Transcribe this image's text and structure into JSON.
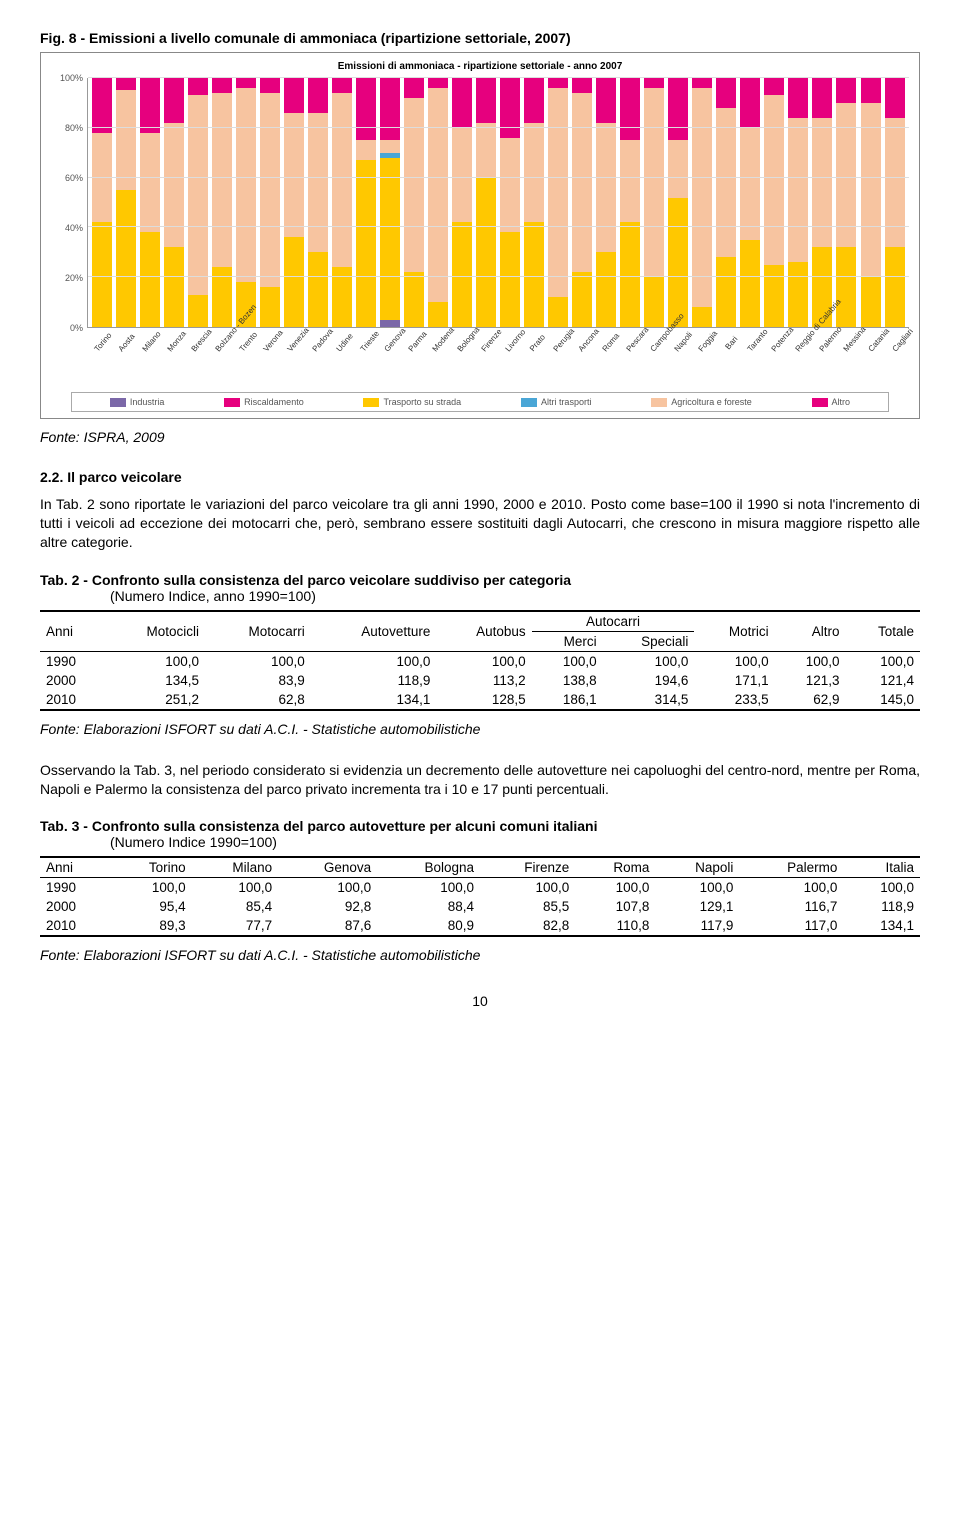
{
  "fig": {
    "title": "Fig. 8 - Emissioni a livello comunale di ammoniaca (ripartizione settoriale, 2007)",
    "chart_title": "Emissioni di ammoniaca - ripartizione settoriale - anno 2007",
    "source": "Fonte: ISPRA, 2009",
    "y_ticks": [
      "0%",
      "20%",
      "40%",
      "60%",
      "80%",
      "100%"
    ],
    "colors": {
      "industria": "#7b68a8",
      "riscaldamento": "#e6007e",
      "trasporto": "#ffc800",
      "altri_trasporti": "#4aa6d6",
      "agricoltura": "#f7c4a0",
      "altro": "#e6007e",
      "grid": "#dddddd",
      "background": "#ffffff"
    },
    "legend": [
      "Industria",
      "Riscaldamento",
      "Trasporto su strada",
      "Altri trasporti",
      "Agricoltura e foreste",
      "Altro"
    ],
    "legend_colors": [
      "#7b68a8",
      "#e6007e",
      "#ffc800",
      "#4aa6d6",
      "#f7c4a0",
      "#e6007e"
    ],
    "categories": [
      "Torino",
      "Aosta",
      "Milano",
      "Monza",
      "Brescia",
      "Bolzano - Bozen",
      "Trento",
      "Verona",
      "Venezia",
      "Padova",
      "Udine",
      "Trieste",
      "Genova",
      "Parma",
      "Modena",
      "Bologna",
      "Firenze",
      "Livorno",
      "Prato",
      "Perugia",
      "Ancona",
      "Roma",
      "Pescara",
      "Campobasso",
      "Napoli",
      "Foggia",
      "Bari",
      "Taranto",
      "Potenza",
      "Reggio di Calabria",
      "Palermo",
      "Messina",
      "Catania",
      "Cagliari"
    ],
    "series": [
      {
        "ind": 0,
        "risc": 0,
        "trasp": 42,
        "altri": 0,
        "agri": 36,
        "altro": 22
      },
      {
        "ind": 0,
        "risc": 0,
        "trasp": 55,
        "altri": 0,
        "agri": 40,
        "altro": 5
      },
      {
        "ind": 0,
        "risc": 0,
        "trasp": 38,
        "altri": 0,
        "agri": 40,
        "altro": 22
      },
      {
        "ind": 0,
        "risc": 0,
        "trasp": 32,
        "altri": 0,
        "agri": 50,
        "altro": 18
      },
      {
        "ind": 0,
        "risc": 0,
        "trasp": 13,
        "altri": 0,
        "agri": 80,
        "altro": 7
      },
      {
        "ind": 0,
        "risc": 0,
        "trasp": 24,
        "altri": 0,
        "agri": 70,
        "altro": 6
      },
      {
        "ind": 0,
        "risc": 0,
        "trasp": 18,
        "altri": 0,
        "agri": 78,
        "altro": 4
      },
      {
        "ind": 0,
        "risc": 0,
        "trasp": 16,
        "altri": 0,
        "agri": 78,
        "altro": 6
      },
      {
        "ind": 0,
        "risc": 0,
        "trasp": 36,
        "altri": 0,
        "agri": 50,
        "altro": 14
      },
      {
        "ind": 0,
        "risc": 0,
        "trasp": 30,
        "altri": 0,
        "agri": 56,
        "altro": 14
      },
      {
        "ind": 0,
        "risc": 0,
        "trasp": 24,
        "altri": 0,
        "agri": 70,
        "altro": 6
      },
      {
        "ind": 0,
        "risc": 0,
        "trasp": 67,
        "altri": 0,
        "agri": 8,
        "altro": 25
      },
      {
        "ind": 3,
        "risc": 0,
        "trasp": 65,
        "altri": 2,
        "agri": 5,
        "altro": 25
      },
      {
        "ind": 0,
        "risc": 0,
        "trasp": 22,
        "altri": 0,
        "agri": 70,
        "altro": 8
      },
      {
        "ind": 0,
        "risc": 0,
        "trasp": 10,
        "altri": 0,
        "agri": 86,
        "altro": 4
      },
      {
        "ind": 0,
        "risc": 0,
        "trasp": 42,
        "altri": 0,
        "agri": 38,
        "altro": 20
      },
      {
        "ind": 0,
        "risc": 0,
        "trasp": 60,
        "altri": 0,
        "agri": 22,
        "altro": 18
      },
      {
        "ind": 0,
        "risc": 0,
        "trasp": 38,
        "altri": 0,
        "agri": 38,
        "altro": 24
      },
      {
        "ind": 0,
        "risc": 0,
        "trasp": 42,
        "altri": 0,
        "agri": 40,
        "altro": 18
      },
      {
        "ind": 0,
        "risc": 0,
        "trasp": 12,
        "altri": 0,
        "agri": 84,
        "altro": 4
      },
      {
        "ind": 0,
        "risc": 0,
        "trasp": 22,
        "altri": 0,
        "agri": 72,
        "altro": 6
      },
      {
        "ind": 0,
        "risc": 0,
        "trasp": 30,
        "altri": 0,
        "agri": 52,
        "altro": 18
      },
      {
        "ind": 0,
        "risc": 0,
        "trasp": 42,
        "altri": 0,
        "agri": 33,
        "altro": 25
      },
      {
        "ind": 0,
        "risc": 0,
        "trasp": 20,
        "altri": 0,
        "agri": 76,
        "altro": 4
      },
      {
        "ind": 0,
        "risc": 0,
        "trasp": 52,
        "altri": 0,
        "agri": 23,
        "altro": 25
      },
      {
        "ind": 0,
        "risc": 0,
        "trasp": 8,
        "altri": 0,
        "agri": 88,
        "altro": 4
      },
      {
        "ind": 0,
        "risc": 0,
        "trasp": 28,
        "altri": 0,
        "agri": 60,
        "altro": 12
      },
      {
        "ind": 0,
        "risc": 0,
        "trasp": 35,
        "altri": 0,
        "agri": 45,
        "altro": 20
      },
      {
        "ind": 0,
        "risc": 0,
        "trasp": 25,
        "altri": 0,
        "agri": 68,
        "altro": 7
      },
      {
        "ind": 0,
        "risc": 0,
        "trasp": 26,
        "altri": 0,
        "agri": 58,
        "altro": 16
      },
      {
        "ind": 0,
        "risc": 0,
        "trasp": 32,
        "altri": 0,
        "agri": 52,
        "altro": 16
      },
      {
        "ind": 0,
        "risc": 0,
        "trasp": 32,
        "altri": 0,
        "agri": 58,
        "altro": 10
      },
      {
        "ind": 0,
        "risc": 0,
        "trasp": 20,
        "altri": 0,
        "agri": 70,
        "altro": 10
      },
      {
        "ind": 0,
        "risc": 0,
        "trasp": 32,
        "altri": 0,
        "agri": 52,
        "altro": 16
      }
    ]
  },
  "section": {
    "heading": "2.2.   Il parco veicolare",
    "para1": "In Tab. 2 sono riportate le variazioni del parco veicolare tra gli anni 1990, 2000 e 2010. Posto come base=100 il 1990 si nota l'incremento di tutti i veicoli ad eccezione dei motocarri che, però, sembrano essere sostituiti dagli Autocarri, che crescono in misura maggiore rispetto alle altre categorie."
  },
  "tab2": {
    "title": "Tab. 2 - Confronto sulla consistenza del parco veicolare suddiviso per categoria",
    "subtitle": "(Numero Indice, anno 1990=100)",
    "headers": [
      "Anni",
      "Motocicli",
      "Motocarri",
      "Autovetture",
      "Autobus",
      "Autocarri",
      "Motrici",
      "Altro",
      "Totale"
    ],
    "sub_headers": [
      "Merci",
      "Speciali"
    ],
    "rows": [
      [
        "1990",
        "100,0",
        "100,0",
        "100,0",
        "100,0",
        "100,0",
        "100,0",
        "100,0",
        "100,0",
        "100,0"
      ],
      [
        "2000",
        "134,5",
        "83,9",
        "118,9",
        "113,2",
        "138,8",
        "194,6",
        "171,1",
        "121,3",
        "121,4"
      ],
      [
        "2010",
        "251,2",
        "62,8",
        "134,1",
        "128,5",
        "186,1",
        "314,5",
        "233,5",
        "62,9",
        "145,0"
      ]
    ],
    "source": "Fonte: Elaborazioni ISFORT su dati A.C.I. - Statistiche automobilistiche"
  },
  "para2": "Osservando la Tab. 3, nel periodo considerato si evidenzia un decremento delle autovetture nei capoluoghi del centro-nord, mentre per Roma, Napoli e Palermo la consistenza del parco privato incrementa tra i 10 e 17 punti percentuali.",
  "tab3": {
    "title": "Tab. 3 - Confronto sulla consistenza del parco autovetture per alcuni comuni italiani",
    "subtitle": "(Numero Indice 1990=100)",
    "headers": [
      "Anni",
      "Torino",
      "Milano",
      "Genova",
      "Bologna",
      "Firenze",
      "Roma",
      "Napoli",
      "Palermo",
      "Italia"
    ],
    "rows": [
      [
        "1990",
        "100,0",
        "100,0",
        "100,0",
        "100,0",
        "100,0",
        "100,0",
        "100,0",
        "100,0",
        "100,0"
      ],
      [
        "2000",
        "95,4",
        "85,4",
        "92,8",
        "88,4",
        "85,5",
        "107,8",
        "129,1",
        "116,7",
        "118,9"
      ],
      [
        "2010",
        "89,3",
        "77,7",
        "87,6",
        "80,9",
        "82,8",
        "110,8",
        "117,9",
        "117,0",
        "134,1"
      ]
    ],
    "source": "Fonte: Elaborazioni ISFORT su dati A.C.I. - Statistiche automobilistiche"
  },
  "page_number": "10"
}
